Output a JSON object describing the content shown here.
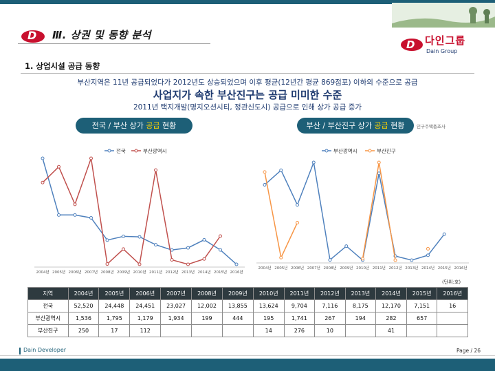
{
  "header": {
    "section_title": "Ⅲ. 상권 및 동향 분석",
    "brand_name": "다인그룹",
    "brand_sub": "Dain Group",
    "logo_letter": "D"
  },
  "subtitle": "1. 상업시설 공급 동향",
  "summary": {
    "line1": "부산지역은 11년 공급되었다가 2012년도 상승되었으며 이후 평균(12년간 평균 869점포) 이하의 수준으로 공급",
    "line2": "사업지가 속한 부산진구는 공급 미미한 수준",
    "line3": "2011년 택지개발(명지오션시티, 정관신도시) 공급으로 인해 상가 공급 증가"
  },
  "left_chart_title": {
    "before": "전국 / 부산 상가 ",
    "highlight": "공급",
    "after": " 현황"
  },
  "right_chart_title": {
    "before": "부산 / 부산진구 상가 ",
    "highlight": "공급",
    "after": " 현황"
  },
  "source_note": "인구주택총조사",
  "unit_note": "(단위:호)",
  "chart_data": [
    {
      "type": "line",
      "x": [
        "2004년",
        "2005년",
        "2006년",
        "2007년",
        "2008년",
        "2009년",
        "2010년",
        "2011년",
        "2012년",
        "2013년",
        "2014년",
        "2015년",
        "2016년"
      ],
      "series": [
        {
          "name": "전국",
          "color": "#4f81bd",
          "values": [
            52520,
            24448,
            24451,
            23027,
            12002,
            13855,
            13624,
            9704,
            7116,
            8175,
            12170,
            7151,
            16
          ]
        },
        {
          "name": "부산광역시",
          "color": "#c0504d",
          "values": [
            1536,
            1795,
            1179,
            1934,
            199,
            444,
            195,
            1741,
            267,
            194,
            282,
            657,
            null
          ]
        }
      ]
    },
    {
      "type": "line",
      "x": [
        "2004년",
        "2005년",
        "2006년",
        "2007년",
        "2008년",
        "2009년",
        "2010년",
        "2011년",
        "2012년",
        "2013년",
        "2014년",
        "2015년",
        "2016년"
      ],
      "series": [
        {
          "name": "부산광역시",
          "color": "#4f81bd",
          "values": [
            1536,
            1795,
            1179,
            1934,
            199,
            444,
            195,
            1741,
            267,
            194,
            282,
            657,
            null
          ]
        },
        {
          "name": "부산진구",
          "color": "#f79646",
          "values": [
            250,
            17,
            112,
            null,
            null,
            null,
            14,
            276,
            10,
            null,
            41,
            null,
            null
          ]
        }
      ]
    }
  ],
  "table": {
    "headers": [
      "지역",
      "2004년",
      "2005년",
      "2006년",
      "2007년",
      "2008년",
      "2009년",
      "2010년",
      "2011년",
      "2012년",
      "2013년",
      "2014년",
      "2015년",
      "2016년"
    ],
    "rows": [
      [
        "전국",
        "52,520",
        "24,448",
        "24,451",
        "23,027",
        "12,002",
        "13,855",
        "13,624",
        "9,704",
        "7,116",
        "8,175",
        "12,170",
        "7,151",
        "16"
      ],
      [
        "부산광역시",
        "1,536",
        "1,795",
        "1,179",
        "1,934",
        "199",
        "444",
        "195",
        "1,741",
        "267",
        "194",
        "282",
        "657",
        ""
      ],
      [
        "부산진구",
        "250",
        "17",
        "112",
        "",
        "",
        "",
        "14",
        "276",
        "10",
        "",
        "41",
        "",
        ""
      ]
    ]
  },
  "footer": {
    "developer": "Dain Developer",
    "page": "Page  /  26"
  }
}
